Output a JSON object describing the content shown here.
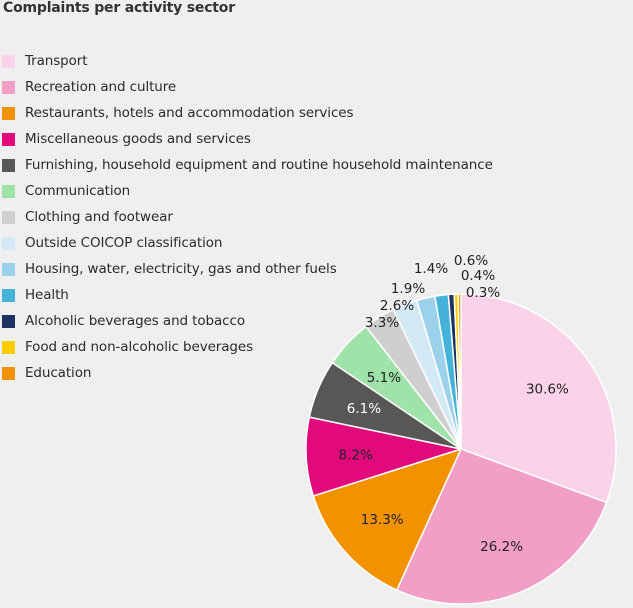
{
  "chart_data": {
    "type": "pie",
    "title": "Complaints per activity sector",
    "categories": [
      "Transport",
      "Recreation and culture",
      "Restaurants, hotels and accommodation services",
      "Miscellaneous goods and services",
      "Furnishing, household equipment and routine household maintenance",
      "Communication",
      "Clothing and footwear",
      "Outside COICOP classification",
      "Housing, water, electricity, gas and other fuels",
      "Health",
      "Alcoholic beverages and tobacco",
      "Food and non-alcoholic beverages",
      "Education"
    ],
    "values": [
      30.6,
      26.2,
      13.3,
      8.2,
      6.1,
      5.1,
      3.3,
      2.6,
      1.9,
      1.4,
      0.6,
      0.4,
      0.3
    ],
    "labels": [
      "30.6%",
      "26.2%",
      "13.3%",
      "8.2%",
      "6.1%",
      "5.1%",
      "3.3%",
      "2.6%",
      "1.9%",
      "1.4%",
      "0.6%",
      "0.4%",
      "0.3%"
    ],
    "colors": [
      "#fad3e8",
      "#f19fc6",
      "#f39200",
      "#e2097d",
      "#575756",
      "#9fe3a8",
      "#cfcfcf",
      "#d3e9f6",
      "#9cd1ec",
      "#45b3d8",
      "#1d3260",
      "#fbcd00",
      "#f39200"
    ],
    "legend_position": "left"
  }
}
